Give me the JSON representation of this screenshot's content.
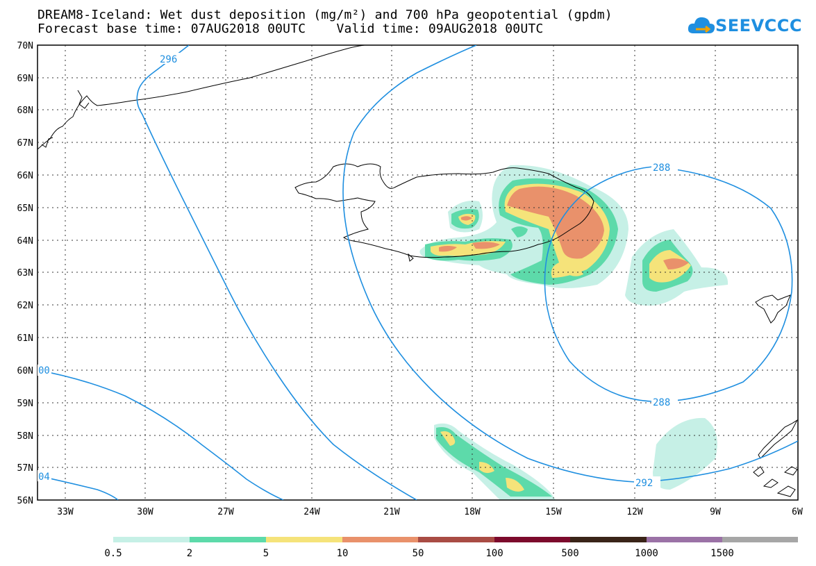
{
  "header": {
    "title_line1": "DREAM8-Iceland: Wet dust deposition (mg/m²) and 700 hPa geopotential (gpdm)",
    "title_line2": "Forecast base time: 07AUG2018 00UTC    Valid time: 09AUG2018 00UTC"
  },
  "logo": {
    "text": "SEEVCCC",
    "icon": "cloud-icon",
    "color": "#1f8fe0"
  },
  "map": {
    "lat_labels": [
      "70N",
      "69N",
      "68N",
      "67N",
      "66N",
      "65N",
      "64N",
      "63N",
      "62N",
      "61N",
      "60N",
      "59N",
      "58N",
      "57N",
      "56N"
    ],
    "lon_labels": [
      "33W",
      "30W",
      "27W",
      "24W",
      "21W",
      "18W",
      "15W",
      "12W",
      "9W",
      "6W"
    ],
    "contour_labels": [
      "296",
      "288",
      "288",
      "292",
      "00",
      "04"
    ],
    "contour_color": "#1f8fe0",
    "coast_color": "#000000"
  },
  "legend": {
    "labels": [
      "0.5",
      "2",
      "5",
      "10",
      "50",
      "100",
      "500",
      "1000",
      "1500"
    ],
    "colors": [
      "#c6f0e6",
      "#5ddaaa",
      "#f5e37a",
      "#e9916b",
      "#a94c44",
      "#7c0a2c",
      "#3a2418",
      "#9b72a6",
      "#a6a6a6"
    ]
  }
}
